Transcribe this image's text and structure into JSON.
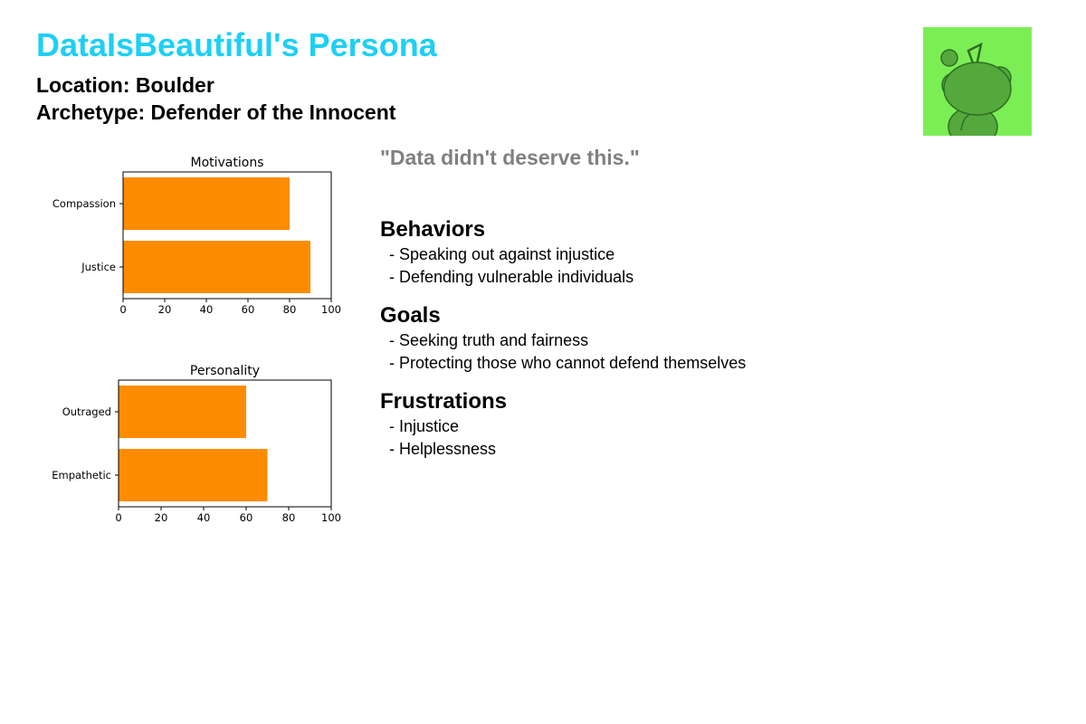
{
  "header": {
    "title": "DataIsBeautiful's Persona",
    "location": "Location: Boulder",
    "archetype": "Archetype: Defender of the Innocent"
  },
  "avatar": {
    "icon": "reddit-alien-icon",
    "background_color": "#7CEE55",
    "figure_color": "#55A93C",
    "outline_color": "#2E6E25"
  },
  "quote": "\"Data didn't deserve this.\"",
  "sections": {
    "behaviors": {
      "heading": "Behaviors",
      "items": [
        "- Speaking out against injustice",
        "- Defending vulnerable individuals"
      ]
    },
    "goals": {
      "heading": "Goals",
      "items": [
        "- Seeking truth and fairness",
        "- Protecting those who cannot defend themselves"
      ]
    },
    "frustrations": {
      "heading": "Frustrations",
      "items": [
        "- Injustice",
        "- Helplessness"
      ]
    }
  },
  "colors": {
    "title": "#1ECFF5",
    "quote": "#808080",
    "bar": "#FF8C00"
  },
  "chart_data": [
    {
      "type": "bar",
      "orientation": "horizontal",
      "title": "Motivations",
      "categories": [
        "Compassion",
        "Justice"
      ],
      "values": [
        80,
        90
      ],
      "xlim": [
        0,
        100
      ],
      "xticks": [
        "0",
        "20",
        "40",
        "60",
        "80",
        "100"
      ],
      "grid": false,
      "bar_color": "#FF8C00"
    },
    {
      "type": "bar",
      "orientation": "horizontal",
      "title": "Personality",
      "categories": [
        "Outraged",
        "Empathetic"
      ],
      "values": [
        60,
        70
      ],
      "xlim": [
        0,
        100
      ],
      "xticks": [
        "0",
        "20",
        "40",
        "60",
        "80",
        "100"
      ],
      "grid": false,
      "bar_color": "#FF8C00"
    }
  ]
}
